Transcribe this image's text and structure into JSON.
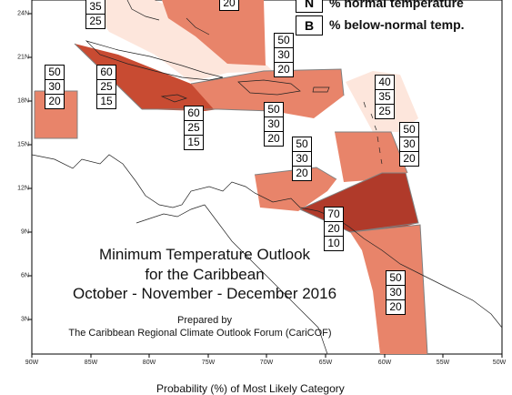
{
  "title": {
    "line1": "Minimum Temperature Outlook",
    "line2": "for the Caribbean",
    "line3": "October - November - December 2016",
    "prepared": "Prepared by",
    "organization": "The Caribbean Regional Climate Outlook Forum (CariCOF)"
  },
  "axis_caption": "Probability (%) of Most Likely Category",
  "legend": {
    "items": [
      {
        "key": "N",
        "text": "% normal temperature"
      },
      {
        "key": "B",
        "text": "% below-normal temp."
      }
    ]
  },
  "longitude_labels": [
    "90W",
    "85W",
    "80W",
    "75W",
    "70W",
    "65W",
    "60W",
    "55W",
    "50W"
  ],
  "latitude_labels": [
    "24N",
    "21N",
    "18N",
    "15N",
    "12N",
    "9N",
    "6N",
    "3N"
  ],
  "colors": {
    "a_70": "#b03a2a",
    "a_60": "#c84b32",
    "a_50": "#e8846a",
    "a_40": "#fbe2d8",
    "outline": "#808080",
    "coast": "#222222"
  },
  "probability_boxes": [
    {
      "id": "top-left-partial",
      "values": [
        "35",
        "25"
      ]
    },
    {
      "id": "top-center-partial",
      "values": [
        "20"
      ]
    },
    {
      "id": "western-caribbean-small",
      "values": [
        "50",
        "30",
        "20"
      ]
    },
    {
      "id": "cuba-east",
      "values": [
        "60",
        "25",
        "15"
      ]
    },
    {
      "id": "jamaica",
      "values": [
        "60",
        "25",
        "15"
      ]
    },
    {
      "id": "hispaniola-north",
      "values": [
        "50",
        "30",
        "20"
      ]
    },
    {
      "id": "hispaniola",
      "values": [
        "50",
        "30",
        "20"
      ]
    },
    {
      "id": "leewards-north",
      "values": [
        "40",
        "35",
        "25"
      ]
    },
    {
      "id": "eastern-caribbean",
      "values": [
        "50",
        "30",
        "20"
      ]
    },
    {
      "id": "abc-islands",
      "values": [
        "50",
        "30",
        "20"
      ]
    },
    {
      "id": "trinidad",
      "values": [
        "70",
        "20",
        "10"
      ]
    },
    {
      "id": "guianas",
      "values": [
        "50",
        "30",
        "20"
      ]
    }
  ]
}
